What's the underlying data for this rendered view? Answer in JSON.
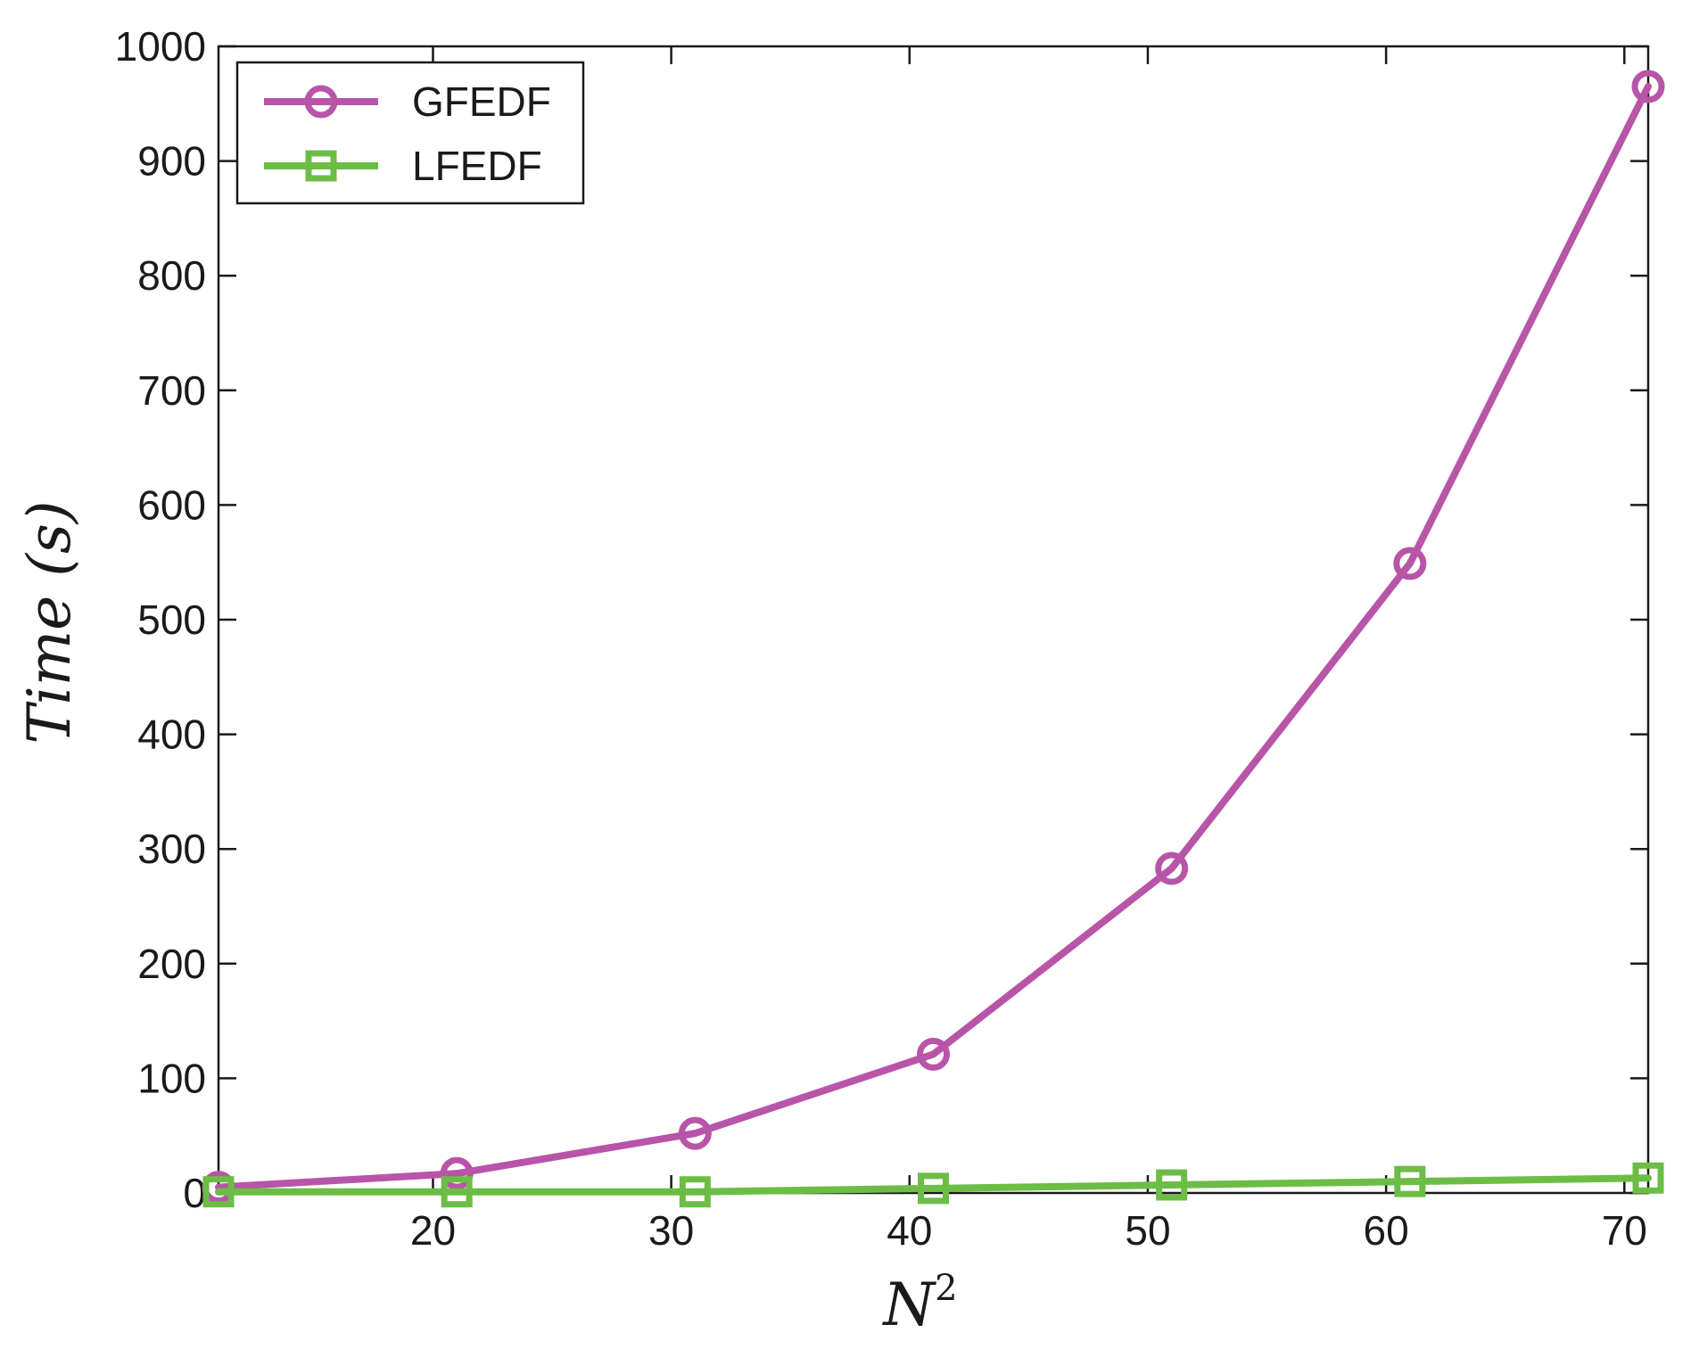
{
  "chart_data": {
    "type": "line",
    "title": "",
    "xlabel": "N",
    "xlabel_sup": "2",
    "ylabel": "Time (s)",
    "xlim": [
      11,
      71
    ],
    "ylim": [
      0,
      1000
    ],
    "xticks": [
      20,
      30,
      40,
      50,
      60,
      70
    ],
    "yticks": [
      0,
      100,
      200,
      300,
      400,
      500,
      600,
      700,
      800,
      900,
      1000
    ],
    "grid": false,
    "legend": "top-left",
    "x": [
      11,
      21,
      31,
      41,
      51,
      61,
      71
    ],
    "series": [
      {
        "name": "GFEDF",
        "color": "#b855a8",
        "marker": "circle",
        "values": [
          5,
          17,
          52,
          121,
          283,
          549,
          965
        ]
      },
      {
        "name": "LFEDF",
        "color": "#6cbd45",
        "marker": "square",
        "values": [
          1,
          1,
          1,
          4,
          7,
          10,
          13
        ]
      }
    ]
  }
}
